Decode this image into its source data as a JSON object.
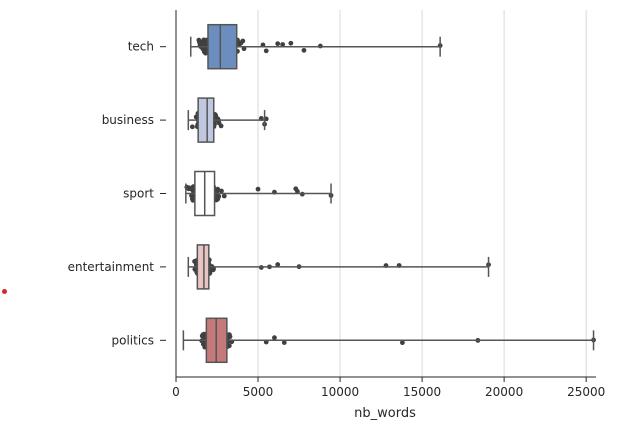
{
  "chart_data": {
    "type": "box",
    "xlabel": "nb_words",
    "ylabel": "",
    "xlim": [
      0,
      25600
    ],
    "xticks": [
      0,
      5000,
      10000,
      15000,
      20000,
      25000
    ],
    "categories": [
      "tech",
      "business",
      "sport",
      "entertainment",
      "politics"
    ],
    "grid": "vertical",
    "boxes": [
      {
        "category": "tech",
        "color": "#6c8ebf",
        "q1": 1950,
        "median": 2700,
        "q3": 3700,
        "whisker_low": 900,
        "whisker_high": 16100
      },
      {
        "category": "business",
        "color": "#c0c8e0",
        "q1": 1350,
        "median": 1900,
        "q3": 2300,
        "whisker_low": 750,
        "whisker_high": 5400
      },
      {
        "category": "sport",
        "color": "#ffffff",
        "q1": 1150,
        "median": 1750,
        "q3": 2350,
        "whisker_low": 600,
        "whisker_high": 9450
      },
      {
        "category": "entertainment",
        "color": "#e8c4c4",
        "q1": 1300,
        "median": 1700,
        "q3": 2000,
        "whisker_low": 750,
        "whisker_high": 19050
      },
      {
        "category": "politics",
        "color": "#c47a7a",
        "q1": 1850,
        "median": 2450,
        "q3": 3100,
        "whisker_low": 450,
        "whisker_high": 25450
      }
    ],
    "outliers": {
      "tech": [
        5300,
        5500,
        6200,
        6500,
        7000,
        7800,
        8800,
        16100
      ],
      "business": [
        5200,
        5400,
        5500
      ],
      "sport": [
        5000,
        6000,
        7300,
        7400,
        7700,
        9450
      ],
      "entertainment": [
        5200,
        5700,
        6200,
        7500,
        12800,
        13600,
        19050
      ],
      "politics": [
        5500,
        6000,
        6600,
        13800,
        18400,
        25450
      ]
    }
  }
}
